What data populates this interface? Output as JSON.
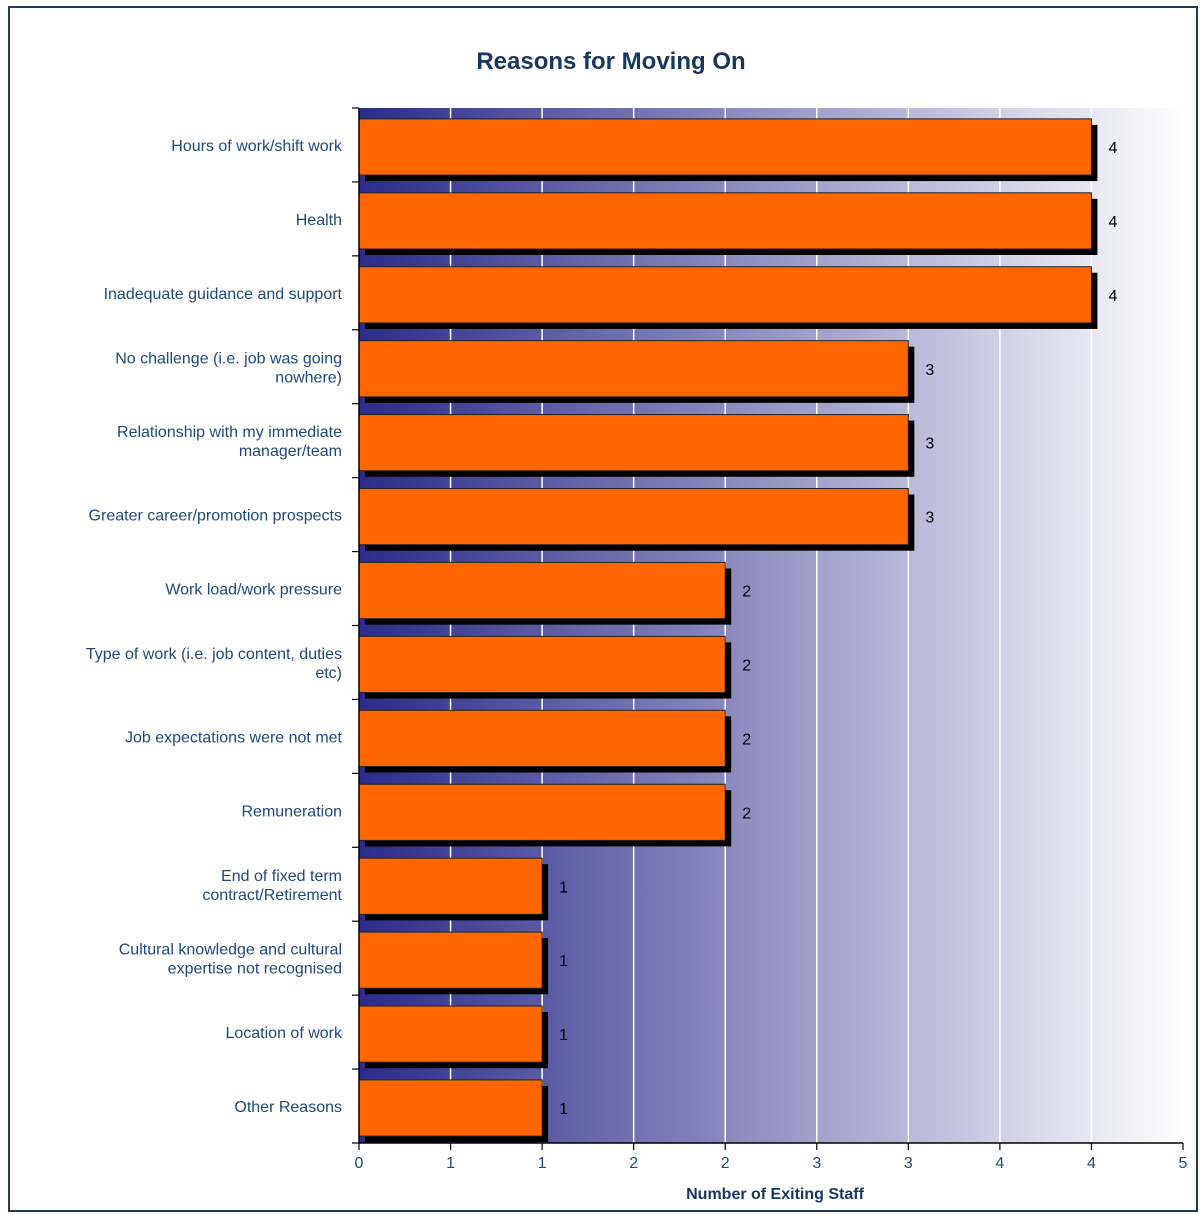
{
  "chart_data": {
    "type": "bar",
    "orientation": "horizontal",
    "title": "Reasons for Moving On",
    "xlabel": "Number of Exiting Staff",
    "ylabel": "",
    "xlim": [
      0,
      4.5
    ],
    "x_tick_labels": [
      "0",
      "1",
      "1",
      "2",
      "2",
      "3",
      "3",
      "4",
      "4",
      "5"
    ],
    "grid": "vertical",
    "legend": "none",
    "categories": [
      "Hours of work/shift work",
      "Health",
      "Inadequate guidance and support",
      "No challenge (i.e. job was going nowhere)",
      "Relationship with my immediate manager/team",
      "Greater career/promotion prospects",
      "Work load/work pressure",
      "Type of work (i.e. job content, duties etc)",
      "Job expectations were not met",
      "Remuneration",
      "End of fixed term contract/Retirement",
      "Cultural knowledge and cultural expertise not recognised",
      "Location of work",
      "Other Reasons"
    ],
    "category_lines": [
      [
        "Hours of work/shift work"
      ],
      [
        "Health"
      ],
      [
        "Inadequate guidance and support"
      ],
      [
        "No challenge (i.e. job was going",
        "nowhere)"
      ],
      [
        "Relationship with my immediate",
        "manager/team"
      ],
      [
        "Greater career/promotion prospects"
      ],
      [
        "Work load/work pressure"
      ],
      [
        "Type of work (i.e. job content, duties",
        "etc)"
      ],
      [
        "Job expectations were not met"
      ],
      [
        "Remuneration"
      ],
      [
        "End of fixed term",
        "contract/Retirement"
      ],
      [
        "Cultural knowledge and cultural",
        "expertise not recognised"
      ],
      [
        "Location of work"
      ],
      [
        "Other Reasons"
      ]
    ],
    "values": [
      4,
      4,
      4,
      3,
      3,
      3,
      2,
      2,
      2,
      2,
      1,
      1,
      1,
      1
    ],
    "colors": {
      "bar": "#ff6600",
      "bar_shadow": "#000000",
      "background_start": "#2b2b8a",
      "background_end": "#ffffff",
      "text": "#1f497d",
      "title": "#17375e",
      "frame": "#1f3a64"
    }
  }
}
